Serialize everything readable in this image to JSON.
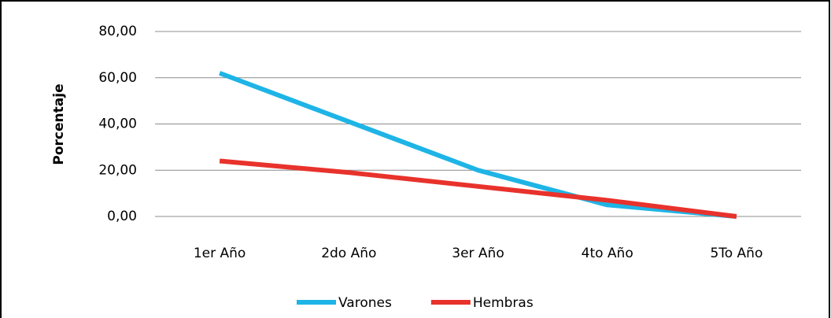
{
  "chart_data": {
    "type": "line",
    "y_label": "Porcentaje",
    "categories": [
      "1er Año",
      "2do Año",
      "3er Año",
      "4to Año",
      "5To Año"
    ],
    "series": [
      {
        "name": "Varones",
        "color": "#1eb4e6",
        "values": [
          62,
          41,
          20,
          5,
          0
        ]
      },
      {
        "name": "Hembras",
        "color": "#e8322c",
        "values": [
          24,
          19,
          13,
          7,
          0
        ]
      }
    ],
    "ylim": [
      0,
      80
    ],
    "yticks": [
      {
        "value": 0,
        "label": "0,00"
      },
      {
        "value": 20,
        "label": "20,00"
      },
      {
        "value": 40,
        "label": "40,00"
      },
      {
        "value": 60,
        "label": "60,00"
      },
      {
        "value": 80,
        "label": "80,00"
      }
    ],
    "grid": true,
    "legend": "bottom"
  }
}
